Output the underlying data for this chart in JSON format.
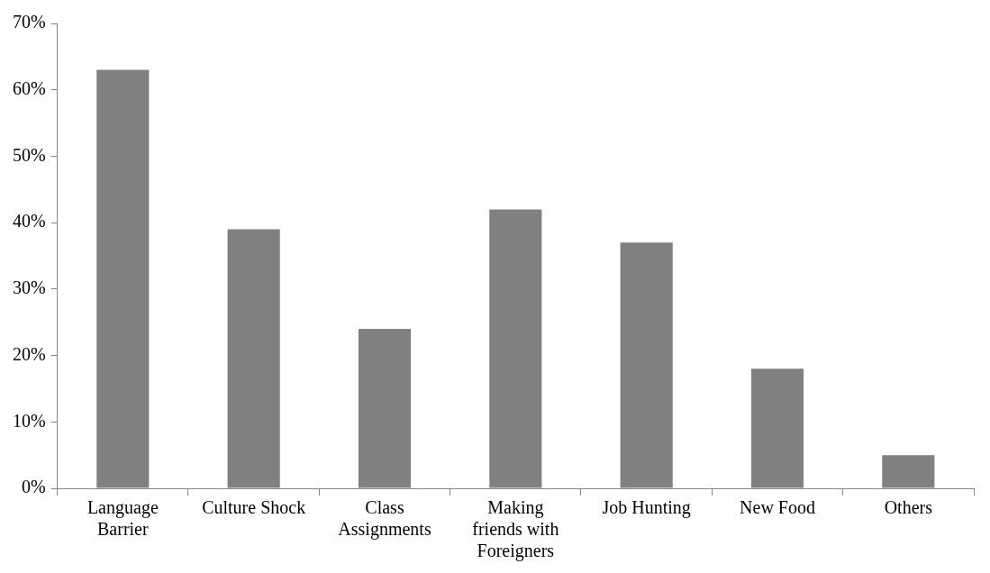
{
  "chart_data": {
    "type": "bar",
    "categories": [
      "Language Barrier",
      "Culture Shock",
      "Class Assignments",
      "Making friends with Foreigners",
      "Job Hunting",
      "New Food",
      "Others"
    ],
    "values": [
      63,
      39,
      24,
      42,
      37,
      18,
      5
    ],
    "color": "#808080",
    "ylim": [
      0,
      70
    ],
    "yticks": [
      {
        "value": 0,
        "label": "0%"
      },
      {
        "value": 10,
        "label": "10%"
      },
      {
        "value": 20,
        "label": "20%"
      },
      {
        "value": 30,
        "label": "30%"
      },
      {
        "value": 40,
        "label": "40%"
      },
      {
        "value": 50,
        "label": "50%"
      },
      {
        "value": 60,
        "label": "60%"
      },
      {
        "value": 70,
        "label": "70%"
      }
    ],
    "grid": false,
    "legend": false
  }
}
